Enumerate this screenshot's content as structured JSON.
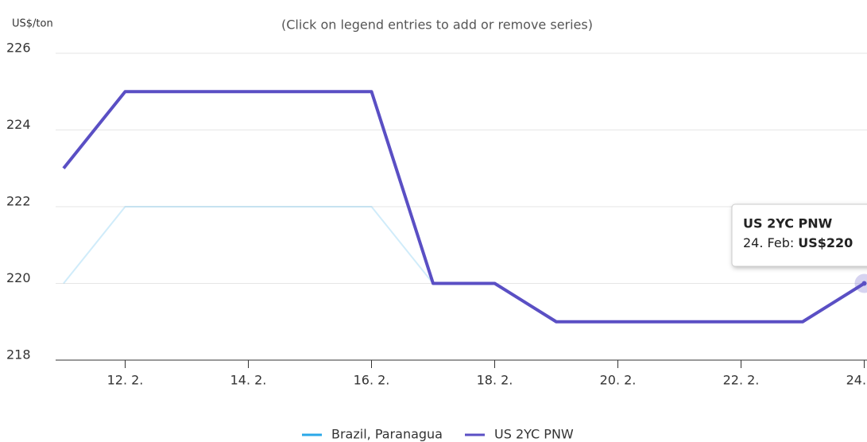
{
  "chart_data": {
    "type": "line",
    "subtitle": "(Click on legend entries to add or remove series)",
    "y_axis_label": "US$/ton",
    "categories": [
      null,
      "12. 2.",
      null,
      "14. 2.",
      null,
      "16. 2.",
      null,
      "18. 2.",
      null,
      "20. 2.",
      null,
      "22. 2.",
      null,
      "24. 2."
    ],
    "series": [
      {
        "name": "Brazil, Paranagua",
        "color": "#2aa8e8",
        "values": [
          220,
          222,
          222,
          222,
          222,
          222,
          220,
          220,
          219,
          219,
          219,
          219,
          219,
          220
        ]
      },
      {
        "name": "US 2YC PNW",
        "color": "#5a4fc4",
        "values": [
          223,
          225,
          225,
          225,
          225,
          225,
          220,
          220,
          219,
          219,
          219,
          219,
          219,
          220
        ]
      }
    ],
    "ylim": [
      218,
      226
    ],
    "yticks": [
      218,
      220,
      222,
      224,
      226
    ],
    "grid": true,
    "tooltip": {
      "date": "24. Feb:",
      "value": "US$220"
    }
  }
}
